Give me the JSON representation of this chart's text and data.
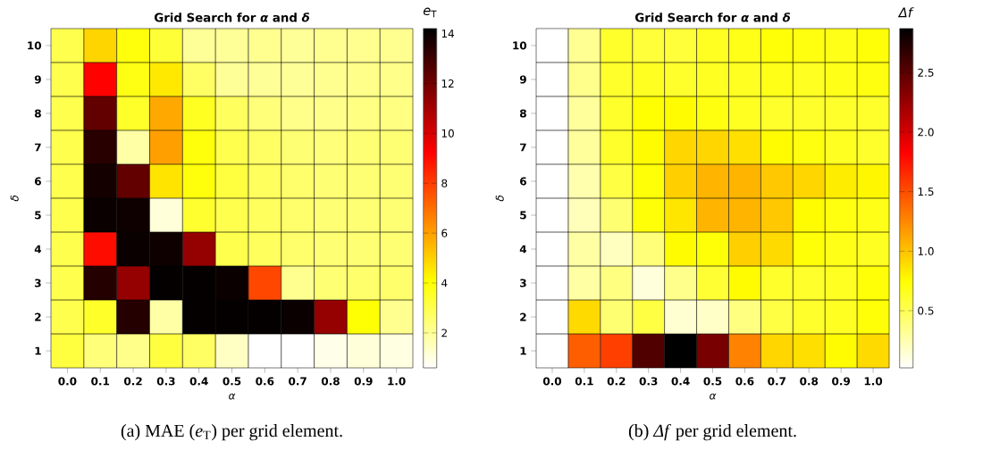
{
  "chart_data": [
    {
      "type": "heatmap",
      "title": "Grid Search for *α* and *δ*",
      "xlabel": "*α*",
      "ylabel": "*δ*",
      "clabel": "*e*$_{T}$",
      "categories": [
        "0.0",
        "0.1",
        "0.2",
        "0.3",
        "0.4",
        "0.5",
        "0.6",
        "0.7",
        "0.8",
        "0.9",
        "1.0"
      ],
      "y_categories": [
        "10",
        "9",
        "8",
        "7",
        "6",
        "5",
        "4",
        "3",
        "2",
        "1"
      ],
      "cells": [
        [
          3.0,
          4.9,
          3.9,
          3.3,
          2.0,
          2.0,
          2.1,
          2.0,
          2.1,
          2.1,
          2.1
        ],
        [
          3.0,
          9.2,
          3.8,
          4.5,
          2.7,
          2.0,
          2.0,
          2.0,
          2.1,
          2.2,
          2.2
        ],
        [
          3.0,
          12.3,
          3.5,
          5.8,
          3.6,
          2.8,
          2.4,
          2.2,
          2.2,
          2.3,
          2.3
        ],
        [
          3.0,
          13.4,
          1.8,
          6.0,
          3.9,
          3.0,
          2.7,
          2.5,
          2.4,
          2.5,
          2.5
        ],
        [
          3.0,
          13.8,
          12.3,
          4.6,
          3.9,
          3.2,
          2.8,
          2.6,
          2.5,
          2.5,
          2.5
        ],
        [
          3.0,
          14.0,
          13.9,
          1.1,
          3.4,
          3.0,
          2.8,
          2.6,
          2.5,
          2.5,
          2.5
        ],
        [
          3.0,
          9.0,
          14.0,
          13.9,
          11.3,
          3.0,
          2.8,
          2.6,
          2.5,
          2.5,
          2.5
        ],
        [
          3.0,
          13.5,
          11.3,
          14.1,
          14.1,
          14.0,
          7.8,
          2.1,
          2.5,
          2.6,
          2.6
        ],
        [
          3.0,
          3.5,
          13.5,
          1.8,
          14.1,
          14.1,
          14.1,
          14.0,
          11.3,
          4.0,
          2.1
        ],
        [
          3.2,
          2.4,
          2.2,
          3.2,
          2.7,
          1.4,
          0.6,
          0.6,
          0.9,
          1.1,
          1.0
        ]
      ],
      "clim": [
        0.6,
        14.2
      ],
      "cticks": [
        2,
        4,
        6,
        8,
        10,
        12,
        14
      ],
      "annotations": [
        "(a) MAE (*e*$_{T}$) per grid element."
      ]
    },
    {
      "type": "heatmap",
      "title": "Grid Search for *α* and *δ*",
      "xlabel": "*α*",
      "ylabel": "*δ*",
      "clabel": "*Δf*",
      "categories": [
        "0.0",
        "0.1",
        "0.2",
        "0.3",
        "0.4",
        "0.5",
        "0.6",
        "0.7",
        "0.8",
        "0.9",
        "1.0"
      ],
      "y_categories": [
        "10",
        "9",
        "8",
        "7",
        "6",
        "5",
        "4",
        "3",
        "2",
        "1"
      ],
      "cells": [
        [
          0.02,
          0.33,
          0.62,
          0.58,
          0.58,
          0.65,
          0.68,
          0.72,
          0.7,
          0.68,
          0.72
        ],
        [
          0.02,
          0.35,
          0.62,
          0.65,
          0.62,
          0.65,
          0.65,
          0.68,
          0.65,
          0.68,
          0.7
        ],
        [
          0.02,
          0.3,
          0.62,
          0.74,
          0.76,
          0.7,
          0.65,
          0.62,
          0.62,
          0.62,
          0.62
        ],
        [
          0.02,
          0.3,
          0.62,
          0.76,
          0.92,
          0.92,
          0.88,
          0.76,
          0.7,
          0.65,
          0.62
        ],
        [
          0.02,
          0.25,
          0.55,
          0.72,
          0.95,
          1.06,
          1.06,
          0.98,
          0.92,
          0.82,
          0.78
        ],
        [
          0.02,
          0.22,
          0.42,
          0.72,
          0.85,
          1.06,
          1.06,
          0.98,
          0.76,
          0.7,
          0.68
        ],
        [
          0.02,
          0.28,
          0.2,
          0.4,
          0.76,
          0.72,
          0.95,
          0.9,
          0.72,
          0.68,
          0.65
        ],
        [
          0.02,
          0.28,
          0.38,
          0.12,
          0.35,
          0.6,
          0.76,
          0.62,
          0.62,
          0.65,
          0.72
        ],
        [
          0.02,
          0.9,
          0.42,
          0.55,
          0.15,
          0.18,
          0.38,
          0.55,
          0.62,
          0.65,
          0.72
        ],
        [
          0.02,
          1.43,
          1.56,
          2.54,
          2.87,
          2.38,
          1.27,
          0.92,
          0.88,
          0.76,
          0.9
        ]
      ],
      "clim": [
        0.02,
        2.87
      ],
      "cticks": [
        0.5,
        {
          "value": 1.0,
          "label": "1.0"
        },
        1.5,
        {
          "value": 2.0,
          "label": "2.0"
        },
        2.5
      ],
      "annotations": [
        "(b) *Δf* per grid element."
      ]
    }
  ]
}
